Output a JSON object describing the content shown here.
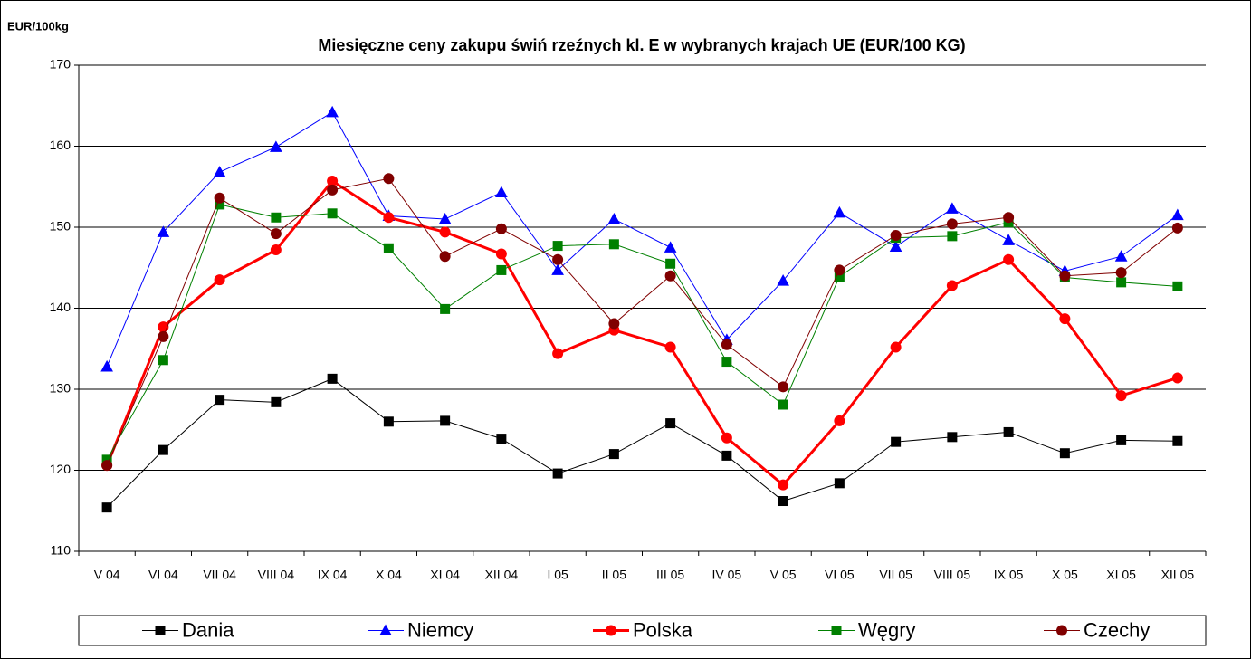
{
  "chart_data": {
    "type": "line",
    "title": "Miesięczne ceny zakupu świń rzeźnych kl. E w wybranych krajach UE (EUR/100 KG)",
    "y_label": "EUR/100kg",
    "categories": [
      "V  04",
      "VI  04",
      "VII  04",
      "VIII  04",
      "IX  04",
      "X  04",
      "XI  04",
      "XII  04",
      "I  05",
      "II  05",
      "III  05",
      "IV  05",
      "V 05",
      "VI 05",
      "VII 05",
      "VIII 05",
      "IX 05",
      "X 05",
      "XI 05",
      "XII 05"
    ],
    "ylim": [
      110,
      170
    ],
    "yticks": [
      110,
      120,
      130,
      140,
      150,
      160,
      170
    ],
    "grid": true,
    "legend": "bottom",
    "series": [
      {
        "name": "Dania",
        "color": "#000000",
        "marker": "square",
        "line_width": 1,
        "values": [
          115.4,
          122.5,
          128.7,
          128.4,
          131.3,
          126.0,
          126.1,
          123.9,
          119.6,
          122.0,
          125.8,
          121.8,
          116.2,
          118.4,
          123.5,
          124.1,
          124.7,
          122.1,
          123.7,
          123.6
        ]
      },
      {
        "name": "Niemcy",
        "color": "#0000ff",
        "marker": "triangle",
        "line_width": 1,
        "values": [
          132.8,
          149.4,
          156.8,
          159.9,
          164.2,
          151.4,
          151.0,
          154.3,
          144.7,
          151.0,
          147.5,
          136.1,
          143.4,
          151.8,
          147.6,
          152.3,
          148.4,
          144.6,
          146.4,
          151.5
        ]
      },
      {
        "name": "Polska",
        "color": "#ff0000",
        "marker": "circle",
        "line_width": 3,
        "values": [
          120.6,
          137.7,
          143.5,
          147.2,
          155.7,
          151.2,
          149.4,
          146.7,
          134.4,
          137.3,
          135.2,
          124.0,
          118.2,
          126.1,
          135.2,
          142.8,
          146.0,
          138.7,
          129.2,
          131.4
        ]
      },
      {
        "name": "Węgry",
        "color": "#008000",
        "marker": "square",
        "line_width": 1,
        "values": [
          121.3,
          133.6,
          152.8,
          151.2,
          151.7,
          147.4,
          139.9,
          144.7,
          147.7,
          147.9,
          145.5,
          133.4,
          128.1,
          143.9,
          148.7,
          148.9,
          150.6,
          143.8,
          143.2,
          142.7
        ]
      },
      {
        "name": "Czechy",
        "color": "#800000",
        "marker": "circle",
        "line_width": 1,
        "values": [
          120.6,
          136.5,
          153.6,
          149.2,
          154.6,
          156.0,
          146.4,
          149.8,
          146.0,
          138.1,
          144.0,
          135.5,
          130.3,
          144.7,
          149.0,
          150.4,
          151.2,
          144.0,
          144.4,
          149.9
        ]
      }
    ]
  }
}
